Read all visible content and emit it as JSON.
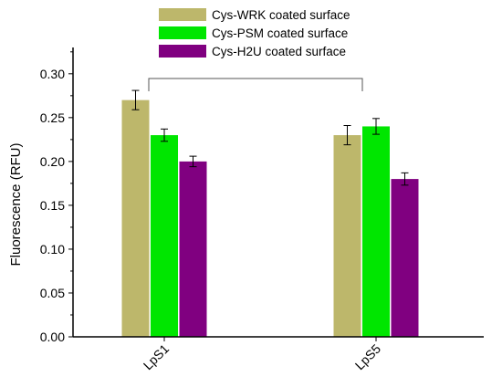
{
  "chart_data": {
    "type": "bar",
    "categories": [
      "LpS1",
      "LpS5"
    ],
    "series": [
      {
        "name": "Cys-WRK coated surface",
        "color": "#bdb76b",
        "values": [
          0.27,
          0.23
        ],
        "errors": [
          0.011,
          0.011
        ]
      },
      {
        "name": "Cys-PSM coated surface",
        "color": "#00e600",
        "values": [
          0.23,
          0.24
        ],
        "errors": [
          0.007,
          0.009
        ]
      },
      {
        "name": "Cys-H2U coated surface",
        "color": "#800080",
        "values": [
          0.2,
          0.18
        ],
        "errors": [
          0.006,
          0.007
        ]
      }
    ],
    "ylabel": "Fluorescence (RFU)",
    "xlabel": "",
    "ylim": [
      0,
      0.33
    ],
    "yticks": [
      "0.00",
      "0.05",
      "0.10",
      "0.15",
      "0.20",
      "0.25",
      "0.30"
    ],
    "ytick_values": [
      0,
      0.05,
      0.1,
      0.15,
      0.2,
      0.25,
      0.3
    ],
    "legend_position": "top-center",
    "grid": false,
    "annotation": "comparison bracket connecting LpS1 and LpS5"
  }
}
